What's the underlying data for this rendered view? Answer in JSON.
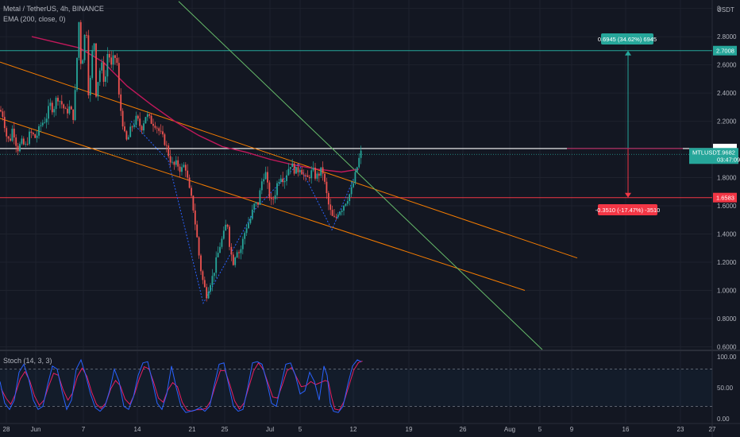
{
  "header": {
    "symbol_line": "Metal / TetherUS, 4h, BINANCE",
    "ema_line": "EMA (200, close, 0)",
    "stoch_line": "Stoch (14, 3, 3)",
    "currency": "USDT"
  },
  "colors": {
    "background": "#131722",
    "grid": "#1e222d",
    "up_candle": "#26a69a",
    "down_candle": "#ef5350",
    "ema": "#c2185b",
    "orange_channel": "#f57c00",
    "green_trendline": "#66bb6a",
    "top_level": "#26a69a",
    "bottom_level": "#f23645",
    "white_line": "#ffffff",
    "stoch_k": "#2962ff",
    "stoch_d": "#e91e63"
  },
  "chart_data": {
    "type": "candlestick",
    "y_axis": {
      "ticks": [
        "3",
        "2.8000",
        "2.6000",
        "2.4000",
        "2.2000",
        "1.8000",
        "1.6000",
        "1.4000",
        "1.2000",
        "1.0000",
        "0.8000",
        "0.6000"
      ],
      "ylim": [
        0.58,
        3.06
      ]
    },
    "stoch_axis": {
      "ticks": [
        "100.00",
        "50.00",
        "0.00"
      ],
      "levels": [
        80,
        20
      ]
    },
    "x_axis": {
      "ticks": [
        "28",
        "Jun",
        "7",
        "14",
        "21",
        "25",
        "Jul",
        "5",
        "12",
        "19",
        "26",
        "Aug",
        "5",
        "9",
        "16",
        "23",
        "27"
      ]
    },
    "price_path": [
      [
        0,
        2.28
      ],
      [
        4,
        2.24
      ],
      [
        8,
        2.1
      ],
      [
        12,
        2.05
      ],
      [
        16,
        2.16
      ],
      [
        22,
        2.0
      ],
      [
        27,
        2.05
      ],
      [
        32,
        2.02
      ],
      [
        38,
        2.12
      ],
      [
        45,
        2.08
      ],
      [
        52,
        2.18
      ],
      [
        58,
        2.22
      ],
      [
        63,
        2.32
      ],
      [
        67,
        2.28
      ],
      [
        72,
        2.38
      ],
      [
        78,
        2.32
      ],
      [
        83,
        2.26
      ],
      [
        88,
        2.3
      ],
      [
        92,
        2.22
      ],
      [
        96,
        2.5
      ],
      [
        99,
        2.95
      ],
      [
        102,
        2.6
      ],
      [
        106,
        2.7
      ],
      [
        108,
        3.05
      ],
      [
        111,
        2.4
      ],
      [
        114,
        2.5
      ],
      [
        118,
        2.85
      ],
      [
        121,
        2.4
      ],
      [
        125,
        2.55
      ],
      [
        128,
        2.6
      ],
      [
        132,
        2.45
      ],
      [
        136,
        2.72
      ],
      [
        140,
        2.58
      ],
      [
        144,
        2.67
      ],
      [
        148,
        2.6
      ],
      [
        150,
        2.35
      ],
      [
        153,
        2.25
      ],
      [
        157,
        2.1
      ],
      [
        160,
        2.05
      ],
      [
        165,
        2.15
      ],
      [
        172,
        2.22
      ],
      [
        178,
        2.15
      ],
      [
        184,
        2.25
      ],
      [
        190,
        2.2
      ],
      [
        196,
        2.18
      ],
      [
        203,
        2.1
      ],
      [
        208,
        2.05
      ],
      [
        213,
        1.95
      ],
      [
        218,
        1.88
      ],
      [
        223,
        1.9
      ],
      [
        228,
        1.85
      ],
      [
        233,
        1.9
      ],
      [
        238,
        1.72
      ],
      [
        243,
        1.6
      ],
      [
        248,
        1.38
      ],
      [
        252,
        1.18
      ],
      [
        256,
        1.05
      ],
      [
        260,
        0.97
      ],
      [
        264,
        1.05
      ],
      [
        268,
        1.1
      ],
      [
        272,
        1.2
      ],
      [
        277,
        1.32
      ],
      [
        282,
        1.4
      ],
      [
        286,
        1.5
      ],
      [
        290,
        1.28
      ],
      [
        294,
        1.2
      ],
      [
        298,
        1.3
      ],
      [
        302,
        1.26
      ],
      [
        306,
        1.36
      ],
      [
        310,
        1.45
      ],
      [
        315,
        1.5
      ],
      [
        320,
        1.6
      ],
      [
        325,
        1.62
      ],
      [
        330,
        1.78
      ],
      [
        334,
        1.85
      ],
      [
        338,
        1.7
      ],
      [
        342,
        1.62
      ],
      [
        346,
        1.68
      ],
      [
        350,
        1.78
      ],
      [
        354,
        1.82
      ],
      [
        358,
        1.78
      ],
      [
        362,
        1.85
      ],
      [
        366,
        1.9
      ],
      [
        370,
        1.86
      ],
      [
        374,
        1.84
      ],
      [
        378,
        1.88
      ],
      [
        382,
        1.82
      ],
      [
        386,
        1.78
      ],
      [
        390,
        1.82
      ],
      [
        394,
        1.85
      ],
      [
        398,
        1.8
      ],
      [
        402,
        1.83
      ],
      [
        406,
        1.86
      ],
      [
        410,
        1.72
      ],
      [
        414,
        1.6
      ],
      [
        418,
        1.52
      ],
      [
        422,
        1.5
      ],
      [
        426,
        1.56
      ],
      [
        430,
        1.58
      ],
      [
        434,
        1.62
      ],
      [
        438,
        1.66
      ],
      [
        442,
        1.7
      ],
      [
        446,
        1.78
      ],
      [
        450,
        1.88
      ],
      [
        453,
        1.95
      ],
      [
        455,
        1.98
      ]
    ],
    "ema200": [
      [
        40,
        2.8
      ],
      [
        70,
        2.76
      ],
      [
        100,
        2.72
      ],
      [
        130,
        2.62
      ],
      [
        160,
        2.45
      ],
      [
        190,
        2.32
      ],
      [
        220,
        2.2
      ],
      [
        250,
        2.1
      ],
      [
        280,
        2.02
      ],
      [
        310,
        1.98
      ],
      [
        340,
        1.93
      ],
      [
        370,
        1.89
      ],
      [
        400,
        1.86
      ],
      [
        430,
        1.84
      ],
      [
        452,
        1.86
      ]
    ],
    "orange_channel": {
      "upper": [
        [
          0,
          2.62
        ],
        [
          727,
          1.23
        ]
      ],
      "lower": [
        [
          0,
          2.22
        ],
        [
          661,
          1.0
        ]
      ]
    },
    "green_trendline": [
      [
        225,
        3.05
      ],
      [
        683,
        0.58
      ]
    ],
    "dotted_pattern": [
      [
        165,
        2.2
      ],
      [
        212,
        1.92
      ],
      [
        256,
        0.91
      ],
      [
        322,
        1.58
      ],
      [
        376,
        1.9
      ],
      [
        418,
        1.43
      ],
      [
        446,
        1.8
      ]
    ],
    "horizontal_levels": {
      "top": 2.7008,
      "bottom": 1.6583,
      "white": 2.0063
    },
    "measure": {
      "up_label": "0.6945 (34.62%) 6945",
      "down_label": "-0.3510 (-17.47%) -3510"
    },
    "price_tags": {
      "top": "2.7008",
      "white": "2.0063",
      "current_symbol": "MTLUSDT",
      "current_price": "1.9682",
      "countdown": "03:47:09",
      "bottom": "1.6583"
    },
    "stoch_k": [
      [
        0,
        60
      ],
      [
        6,
        25
      ],
      [
        12,
        15
      ],
      [
        18,
        30
      ],
      [
        24,
        75
      ],
      [
        30,
        88
      ],
      [
        36,
        65
      ],
      [
        42,
        30
      ],
      [
        48,
        15
      ],
      [
        54,
        20
      ],
      [
        60,
        55
      ],
      [
        66,
        85
      ],
      [
        72,
        80
      ],
      [
        78,
        45
      ],
      [
        84,
        15
      ],
      [
        90,
        30
      ],
      [
        96,
        80
      ],
      [
        102,
        95
      ],
      [
        108,
        70
      ],
      [
        114,
        40
      ],
      [
        120,
        18
      ],
      [
        126,
        12
      ],
      [
        132,
        20
      ],
      [
        138,
        45
      ],
      [
        144,
        80
      ],
      [
        150,
        60
      ],
      [
        156,
        20
      ],
      [
        162,
        15
      ],
      [
        168,
        35
      ],
      [
        174,
        70
      ],
      [
        180,
        90
      ],
      [
        186,
        92
      ],
      [
        192,
        60
      ],
      [
        198,
        25
      ],
      [
        204,
        15
      ],
      [
        210,
        40
      ],
      [
        216,
        85
      ],
      [
        222,
        50
      ],
      [
        228,
        20
      ],
      [
        234,
        10
      ],
      [
        240,
        12
      ],
      [
        246,
        14
      ],
      [
        252,
        18
      ],
      [
        258,
        12
      ],
      [
        264,
        20
      ],
      [
        270,
        55
      ],
      [
        276,
        88
      ],
      [
        282,
        90
      ],
      [
        288,
        55
      ],
      [
        294,
        20
      ],
      [
        300,
        12
      ],
      [
        306,
        15
      ],
      [
        312,
        50
      ],
      [
        318,
        90
      ],
      [
        324,
        92
      ],
      [
        330,
        88
      ],
      [
        336,
        60
      ],
      [
        342,
        25
      ],
      [
        348,
        20
      ],
      [
        354,
        55
      ],
      [
        360,
        88
      ],
      [
        366,
        90
      ],
      [
        372,
        70
      ],
      [
        378,
        40
      ],
      [
        384,
        45
      ],
      [
        390,
        75
      ],
      [
        396,
        60
      ],
      [
        402,
        30
      ],
      [
        408,
        85
      ],
      [
        412,
        70
      ],
      [
        416,
        25
      ],
      [
        420,
        12
      ],
      [
        426,
        10
      ],
      [
        432,
        20
      ],
      [
        438,
        55
      ],
      [
        444,
        85
      ],
      [
        450,
        95
      ],
      [
        455,
        92
      ]
    ]
  }
}
